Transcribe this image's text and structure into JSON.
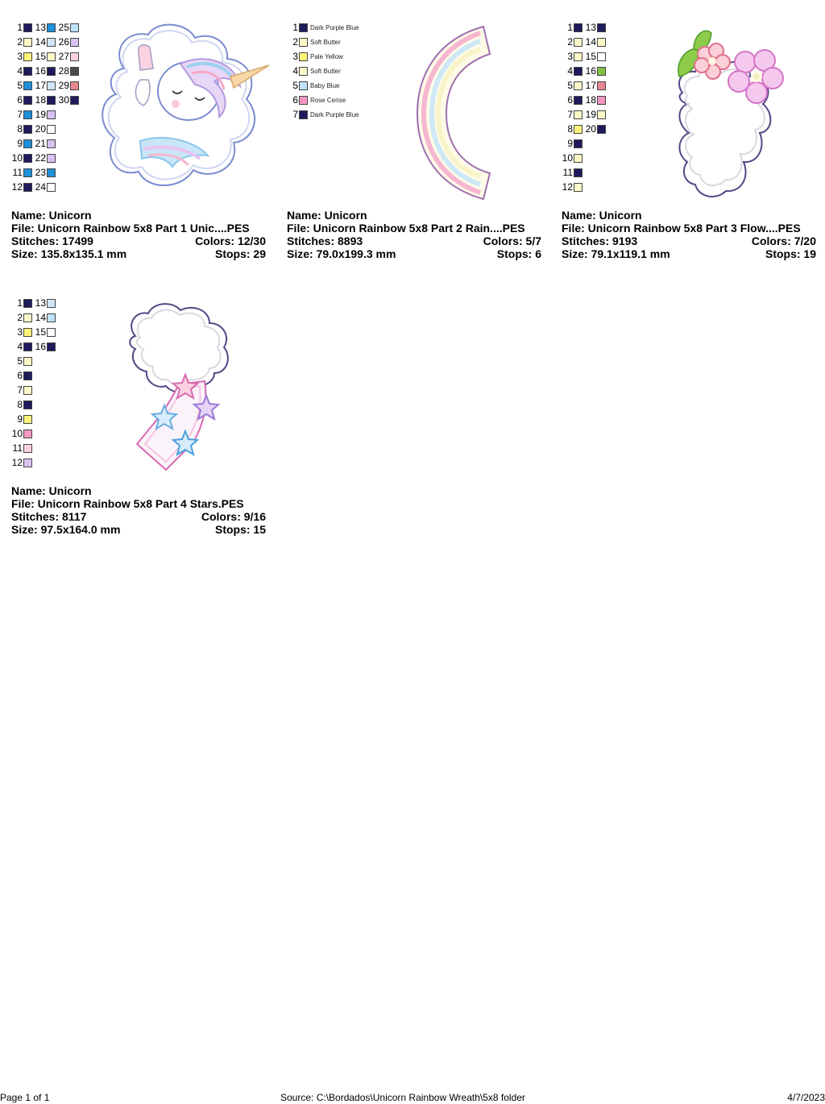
{
  "designs": [
    {
      "name_line": "Name: Unicorn",
      "file_line": "File: Unicorn Rainbow 5x8 Part 1 Unic....PES",
      "stitches": "Stitches: 17499",
      "colors": "Colors: 12/30",
      "size": "Size: 135.8x135.1 mm",
      "stops": "Stops: 29",
      "swatches": [
        [
          [
            "1",
            "#1e1a5c"
          ],
          [
            "2",
            "#fdf8c8"
          ],
          [
            "3",
            "#fff57a"
          ],
          [
            "4",
            "#1e1a5c"
          ],
          [
            "5",
            "#1e8fd8"
          ],
          [
            "6",
            "#1e1a5c"
          ],
          [
            "7",
            "#1e8fd8"
          ],
          [
            "8",
            "#1e1a5c"
          ],
          [
            "9",
            "#1e8fd8"
          ],
          [
            "10",
            "#1e1a5c"
          ],
          [
            "11",
            "#1e8fd8"
          ],
          [
            "12",
            "#1e1a5c"
          ]
        ],
        [
          [
            "13",
            "#1e8fd8"
          ],
          [
            "14",
            "#cfe7f8"
          ],
          [
            "15",
            "#fdf8c8"
          ],
          [
            "16",
            "#1e1a5c"
          ],
          [
            "17",
            "#cfe7f8"
          ],
          [
            "18",
            "#1e1a5c"
          ],
          [
            "19",
            "#d9c2f3"
          ],
          [
            "20",
            "#ffffff"
          ],
          [
            "21",
            "#d9c2f3"
          ],
          [
            "22",
            "#d9c2f3"
          ],
          [
            "23",
            "#1e8fd8"
          ],
          [
            "24",
            "#ffffff"
          ]
        ],
        [
          [
            "25",
            "#bfe3f8"
          ],
          [
            "26",
            "#d9c2f3"
          ],
          [
            "27",
            "#fbd1e1"
          ],
          [
            "28",
            "#4a4a4a"
          ],
          [
            "29",
            "#e7878f"
          ],
          [
            "30",
            "#1e1a5c"
          ]
        ]
      ]
    },
    {
      "name_line": "Name: Unicorn",
      "file_line": "File: Unicorn Rainbow 5x8 Part 2 Rain....PES",
      "stitches": "Stitches: 8893",
      "colors": "Colors: 5/7",
      "size": "Size: 79.0x199.3 mm",
      "stops": "Stops: 6",
      "named_swatches": [
        [
          "1",
          "#1e1a5c",
          "Dark Purple Blue"
        ],
        [
          "2",
          "#fdf8c8",
          "Soft Butter"
        ],
        [
          "3",
          "#fff57a",
          "Pale Yellow"
        ],
        [
          "4",
          "#fdf8c8",
          "Soft Butter"
        ],
        [
          "5",
          "#bfe3f8",
          "Baby Blue"
        ],
        [
          "6",
          "#f497c0",
          "Rose Cerise"
        ],
        [
          "7",
          "#1e1a5c",
          "Dark Purple Blue"
        ]
      ]
    },
    {
      "name_line": "Name: Unicorn",
      "file_line": "File: Unicorn Rainbow 5x8 Part 3 Flow....PES",
      "stitches": "Stitches: 9193",
      "colors": "Colors: 7/20",
      "size": "Size: 79.1x119.1 mm",
      "stops": "Stops: 19",
      "swatches": [
        [
          [
            "1",
            "#1e1a5c"
          ],
          [
            "2",
            "#fdf8c8"
          ],
          [
            "3",
            "#fdf8c8"
          ],
          [
            "4",
            "#1e1a5c"
          ],
          [
            "5",
            "#fdf8c8"
          ],
          [
            "6",
            "#1e1a5c"
          ],
          [
            "7",
            "#fdf8c8"
          ],
          [
            "8",
            "#fff57a"
          ],
          [
            "9",
            "#1e1a5c"
          ],
          [
            "10",
            "#fdf8c8"
          ],
          [
            "11",
            "#1e1a5c"
          ],
          [
            "12",
            "#fdf8c8"
          ]
        ],
        [
          [
            "13",
            "#1e1a5c"
          ],
          [
            "14",
            "#fdf8c8"
          ],
          [
            "15",
            "#ffffff"
          ],
          [
            "16",
            "#7fc241"
          ],
          [
            "17",
            "#e7878f"
          ],
          [
            "18",
            "#f497c0"
          ],
          [
            "19",
            "#fdf8c8"
          ],
          [
            "20",
            "#1e1a5c"
          ]
        ]
      ]
    },
    {
      "name_line": "Name: Unicorn",
      "file_line": "File: Unicorn Rainbow 5x8 Part 4 Stars.PES",
      "stitches": "Stitches: 8117",
      "colors": "Colors: 9/16",
      "size": "Size: 97.5x164.0 mm",
      "stops": "Stops: 15",
      "swatches": [
        [
          [
            "1",
            "#1e1a5c"
          ],
          [
            "2",
            "#fdf8c8"
          ],
          [
            "3",
            "#fff57a"
          ],
          [
            "4",
            "#1e1a5c"
          ],
          [
            "5",
            "#fdf8c8"
          ],
          [
            "6",
            "#1e1a5c"
          ],
          [
            "7",
            "#fdf8c8"
          ],
          [
            "8",
            "#1e1a5c"
          ],
          [
            "9",
            "#fff57a"
          ],
          [
            "10",
            "#f497c0"
          ],
          [
            "11",
            "#fbd1e1"
          ],
          [
            "12",
            "#d9c2f3"
          ]
        ],
        [
          [
            "13",
            "#cfe7f8"
          ],
          [
            "14",
            "#bfe3f8"
          ],
          [
            "15",
            "#ffffff"
          ],
          [
            "16",
            "#1e1a5c"
          ]
        ]
      ]
    }
  ],
  "footer": {
    "page": "Page 1 of 1",
    "source": "Source: C:\\Bordados\\Unicorn Rainbow Wreath\\5x8 folder",
    "date": "4/7/2023"
  }
}
